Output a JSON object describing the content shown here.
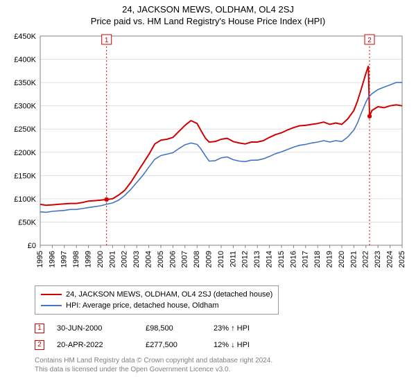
{
  "title": "24, JACKSON MEWS, OLDHAM, OL4 2SJ",
  "subtitle": "Price paid vs. HM Land Registry's House Price Index (HPI)",
  "chart": {
    "type": "line",
    "background_color": "#ffffff",
    "plot_background_color": "#ffffff",
    "grid_color": "#e0e0e0",
    "axis_color": "#808080",
    "y": {
      "min": 0,
      "max": 450000,
      "tick_step": 50000,
      "ticks": [
        "£0",
        "£50K",
        "£100K",
        "£150K",
        "£200K",
        "£250K",
        "£300K",
        "£350K",
        "£400K",
        "£450K"
      ],
      "tick_fontsize": 11,
      "tick_color": "#000000"
    },
    "x": {
      "min": 1995,
      "max": 2025,
      "years": [
        1995,
        1996,
        1997,
        1998,
        1999,
        2000,
        2001,
        2002,
        2003,
        2004,
        2005,
        2006,
        2007,
        2008,
        2009,
        2010,
        2011,
        2012,
        2013,
        2014,
        2015,
        2016,
        2017,
        2018,
        2019,
        2020,
        2021,
        2022,
        2023,
        2024,
        2025
      ],
      "tick_fontsize": 11,
      "tick_color": "#000000"
    },
    "series": [
      {
        "name": "24, JACKSON MEWS, OLDHAM, OL4 2SJ (detached house)",
        "color": "#d00000",
        "width": 2,
        "data": [
          [
            1995,
            88000
          ],
          [
            1995.5,
            86000
          ],
          [
            1996,
            87000
          ],
          [
            1996.5,
            88000
          ],
          [
            1997,
            89000
          ],
          [
            1997.5,
            90000
          ],
          [
            1998,
            90000
          ],
          [
            1998.5,
            92000
          ],
          [
            1999,
            95000
          ],
          [
            1999.5,
            96000
          ],
          [
            2000,
            97000
          ],
          [
            2000.5,
            98500
          ],
          [
            2001,
            100000
          ],
          [
            2001.5,
            108000
          ],
          [
            2002,
            118000
          ],
          [
            2002.5,
            135000
          ],
          [
            2003,
            155000
          ],
          [
            2003.5,
            175000
          ],
          [
            2004,
            195000
          ],
          [
            2004.5,
            218000
          ],
          [
            2005,
            226000
          ],
          [
            2005.5,
            228000
          ],
          [
            2006,
            232000
          ],
          [
            2006.5,
            245000
          ],
          [
            2007,
            258000
          ],
          [
            2007.5,
            268000
          ],
          [
            2008,
            262000
          ],
          [
            2008.3,
            248000
          ],
          [
            2008.7,
            230000
          ],
          [
            2009,
            222000
          ],
          [
            2009.5,
            223000
          ],
          [
            2010,
            228000
          ],
          [
            2010.5,
            230000
          ],
          [
            2011,
            223000
          ],
          [
            2011.5,
            220000
          ],
          [
            2012,
            218000
          ],
          [
            2012.5,
            222000
          ],
          [
            2013,
            222000
          ],
          [
            2013.5,
            225000
          ],
          [
            2014,
            232000
          ],
          [
            2014.5,
            238000
          ],
          [
            2015,
            242000
          ],
          [
            2015.5,
            248000
          ],
          [
            2016,
            253000
          ],
          [
            2016.5,
            257000
          ],
          [
            2017,
            258000
          ],
          [
            2017.5,
            260000
          ],
          [
            2018,
            262000
          ],
          [
            2018.5,
            265000
          ],
          [
            2019,
            260000
          ],
          [
            2019.5,
            263000
          ],
          [
            2020,
            260000
          ],
          [
            2020.5,
            272000
          ],
          [
            2021,
            290000
          ],
          [
            2021.3,
            310000
          ],
          [
            2021.6,
            335000
          ],
          [
            2022,
            370000
          ],
          [
            2022.2,
            385000
          ],
          [
            2022.3,
            277500
          ],
          [
            2022.5,
            290000
          ],
          [
            2023,
            298000
          ],
          [
            2023.5,
            296000
          ],
          [
            2024,
            300000
          ],
          [
            2024.5,
            302000
          ],
          [
            2025,
            300000
          ]
        ]
      },
      {
        "name": "HPI: Average price, detached house, Oldham",
        "color": "#4472c4",
        "width": 1.6,
        "data": [
          [
            1995,
            72000
          ],
          [
            1995.5,
            71000
          ],
          [
            1996,
            73000
          ],
          [
            1996.5,
            74000
          ],
          [
            1997,
            75000
          ],
          [
            1997.5,
            77000
          ],
          [
            1998,
            77000
          ],
          [
            1998.5,
            79000
          ],
          [
            1999,
            81000
          ],
          [
            1999.5,
            83000
          ],
          [
            2000,
            85000
          ],
          [
            2000.5,
            88000
          ],
          [
            2001,
            91000
          ],
          [
            2001.5,
            97000
          ],
          [
            2002,
            107000
          ],
          [
            2002.5,
            120000
          ],
          [
            2003,
            135000
          ],
          [
            2003.5,
            150000
          ],
          [
            2004,
            168000
          ],
          [
            2004.5,
            185000
          ],
          [
            2005,
            193000
          ],
          [
            2005.5,
            196000
          ],
          [
            2006,
            199000
          ],
          [
            2006.5,
            208000
          ],
          [
            2007,
            216000
          ],
          [
            2007.5,
            220000
          ],
          [
            2008,
            217000
          ],
          [
            2008.3,
            208000
          ],
          [
            2008.7,
            192000
          ],
          [
            2009,
            181000
          ],
          [
            2009.5,
            182000
          ],
          [
            2010,
            188000
          ],
          [
            2010.5,
            190000
          ],
          [
            2011,
            184000
          ],
          [
            2011.5,
            181000
          ],
          [
            2012,
            180000
          ],
          [
            2012.5,
            183000
          ],
          [
            2013,
            183000
          ],
          [
            2013.5,
            186000
          ],
          [
            2014,
            191000
          ],
          [
            2014.5,
            197000
          ],
          [
            2015,
            201000
          ],
          [
            2015.5,
            206000
          ],
          [
            2016,
            211000
          ],
          [
            2016.5,
            215000
          ],
          [
            2017,
            217000
          ],
          [
            2017.5,
            220000
          ],
          [
            2018,
            222000
          ],
          [
            2018.5,
            225000
          ],
          [
            2019,
            222000
          ],
          [
            2019.5,
            225000
          ],
          [
            2020,
            223000
          ],
          [
            2020.5,
            233000
          ],
          [
            2021,
            248000
          ],
          [
            2021.3,
            263000
          ],
          [
            2021.6,
            283000
          ],
          [
            2022,
            308000
          ],
          [
            2022.2,
            318000
          ],
          [
            2022.5,
            326000
          ],
          [
            2023,
            335000
          ],
          [
            2023.5,
            340000
          ],
          [
            2024,
            345000
          ],
          [
            2024.5,
            350000
          ],
          [
            2025,
            350000
          ]
        ]
      }
    ],
    "markers": [
      {
        "label": "1",
        "x": 2000.5,
        "y": 98500,
        "line_color": "#d00000",
        "badge_border": "#d00000"
      },
      {
        "label": "2",
        "x": 2022.3,
        "y": 277500,
        "line_color": "#d00000",
        "badge_border": "#d00000"
      }
    ],
    "marker_point_style": {
      "fill": "#d00000",
      "radius": 3.2
    }
  },
  "legend": {
    "items": [
      {
        "color": "#d00000",
        "label": "24, JACKSON MEWS, OLDHAM, OL4 2SJ (detached house)"
      },
      {
        "color": "#4472c4",
        "label": "HPI: Average price, detached house, Oldham"
      }
    ],
    "fontsize": 11,
    "border_color": "#999999"
  },
  "sales": [
    {
      "badge": "1",
      "date": "30-JUN-2000",
      "price": "£98,500",
      "pct": "23% ↑ HPI"
    },
    {
      "badge": "2",
      "date": "20-APR-2022",
      "price": "£277,500",
      "pct": "12% ↓ HPI"
    }
  ],
  "footer": {
    "line1": "Contains HM Land Registry data © Crown copyright and database right 2024.",
    "line2": "This data is licensed under the Open Government Licence v3.0.",
    "color": "#808080"
  }
}
